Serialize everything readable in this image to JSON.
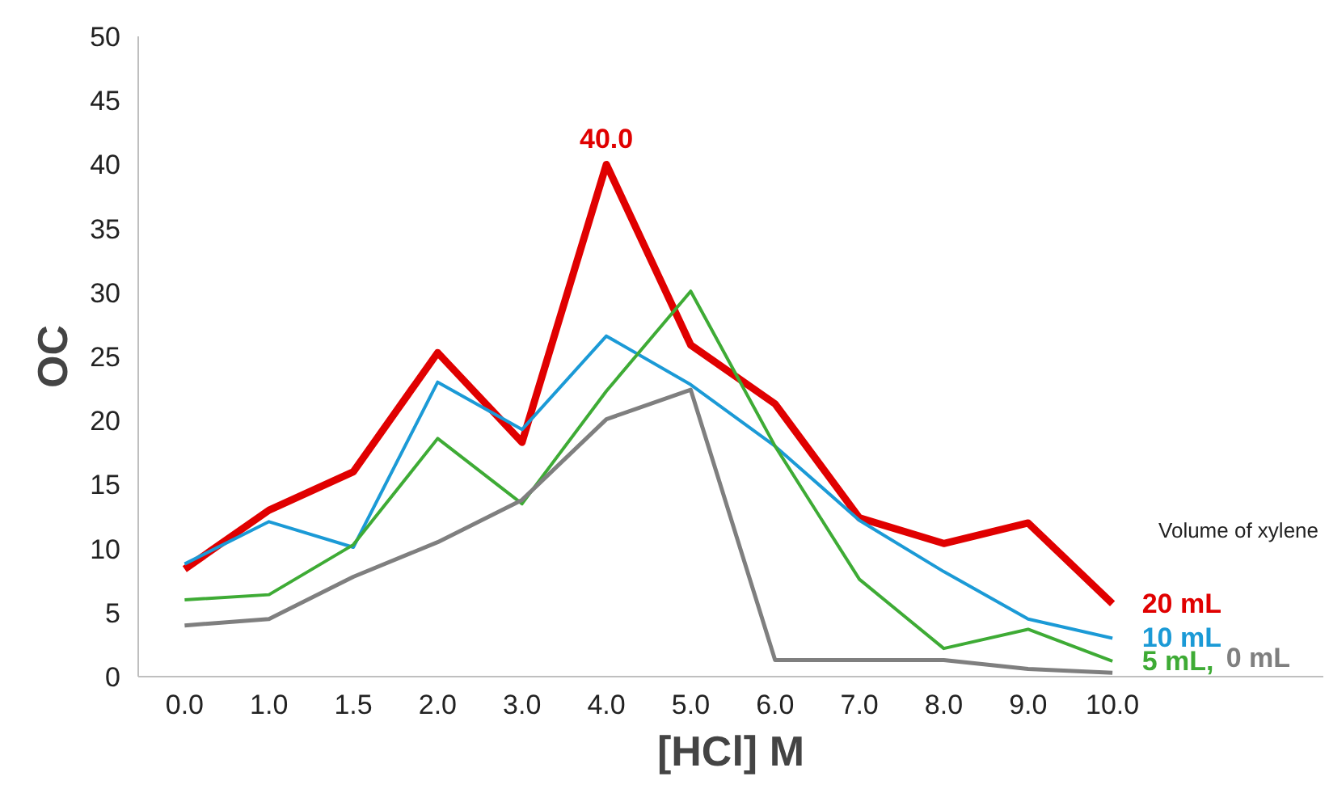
{
  "chart_data": {
    "type": "line",
    "xlabel": "[HCl] M",
    "ylabel": "OC",
    "legend_title": "Volume of xylene",
    "categories": [
      "0.0",
      "1.0",
      "1.5",
      "2.0",
      "3.0",
      "4.0",
      "5.0",
      "6.0",
      "7.0",
      "8.0",
      "9.0",
      "10.0",
      null
    ],
    "ylim": [
      0,
      50
    ],
    "yticks": [
      0,
      5,
      10,
      15,
      20,
      25,
      30,
      35,
      40,
      45,
      50
    ],
    "grid": false,
    "series": [
      {
        "name": "20 mL",
        "color": "#e00000",
        "values": [
          8.4,
          13.0,
          16.0,
          25.3,
          18.3,
          40.0,
          25.9,
          21.3,
          12.4,
          10.4,
          12.0,
          5.7,
          null
        ],
        "value_labels": [
          null,
          null,
          null,
          null,
          null,
          "40.0",
          null,
          null,
          null,
          null,
          null,
          null,
          null
        ]
      },
      {
        "name": "10 mL",
        "color": "#1b9ad6",
        "values": [
          8.8,
          12.1,
          10.1,
          23.0,
          19.3,
          26.6,
          22.8,
          18.0,
          12.2,
          8.2,
          4.5,
          3.0,
          null
        ]
      },
      {
        "name": "5 mL,",
        "color": "#3eab35",
        "values": [
          6.0,
          6.4,
          10.3,
          18.6,
          13.5,
          22.3,
          30.1,
          18.0,
          7.6,
          2.2,
          3.7,
          1.2,
          null
        ]
      },
      {
        "name": "0 mL",
        "color": "#7f7f7f",
        "values": [
          4.0,
          4.5,
          7.8,
          10.5,
          13.8,
          20.1,
          22.4,
          1.3,
          1.3,
          1.3,
          0.6,
          0.3,
          null
        ]
      }
    ]
  }
}
